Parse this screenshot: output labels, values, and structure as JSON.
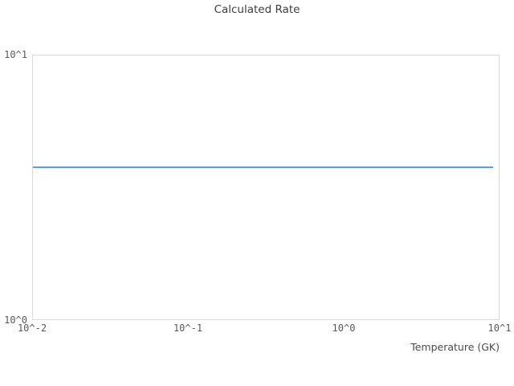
{
  "chart_data": {
    "type": "line",
    "title": "Calculated Rate",
    "xlabel": "Temperature (GK)",
    "ylabel": "",
    "xscale": "log",
    "yscale": "log",
    "xlim": [
      0.01,
      10
    ],
    "ylim": [
      1,
      10
    ],
    "grid": false,
    "legend": "none",
    "x_ticks": [
      "10^-2",
      "10^-1",
      "10^0",
      "10^1"
    ],
    "x_tick_values": [
      0.01,
      0.1,
      1,
      10
    ],
    "y_ticks": [
      "10^0",
      "10^1"
    ],
    "y_tick_values": [
      1,
      10
    ],
    "series": [
      {
        "name": "calculated-rate",
        "color": "#5b9fe1",
        "x": [
          0.01,
          9
        ],
        "y": [
          3.8,
          3.8
        ]
      }
    ]
  }
}
